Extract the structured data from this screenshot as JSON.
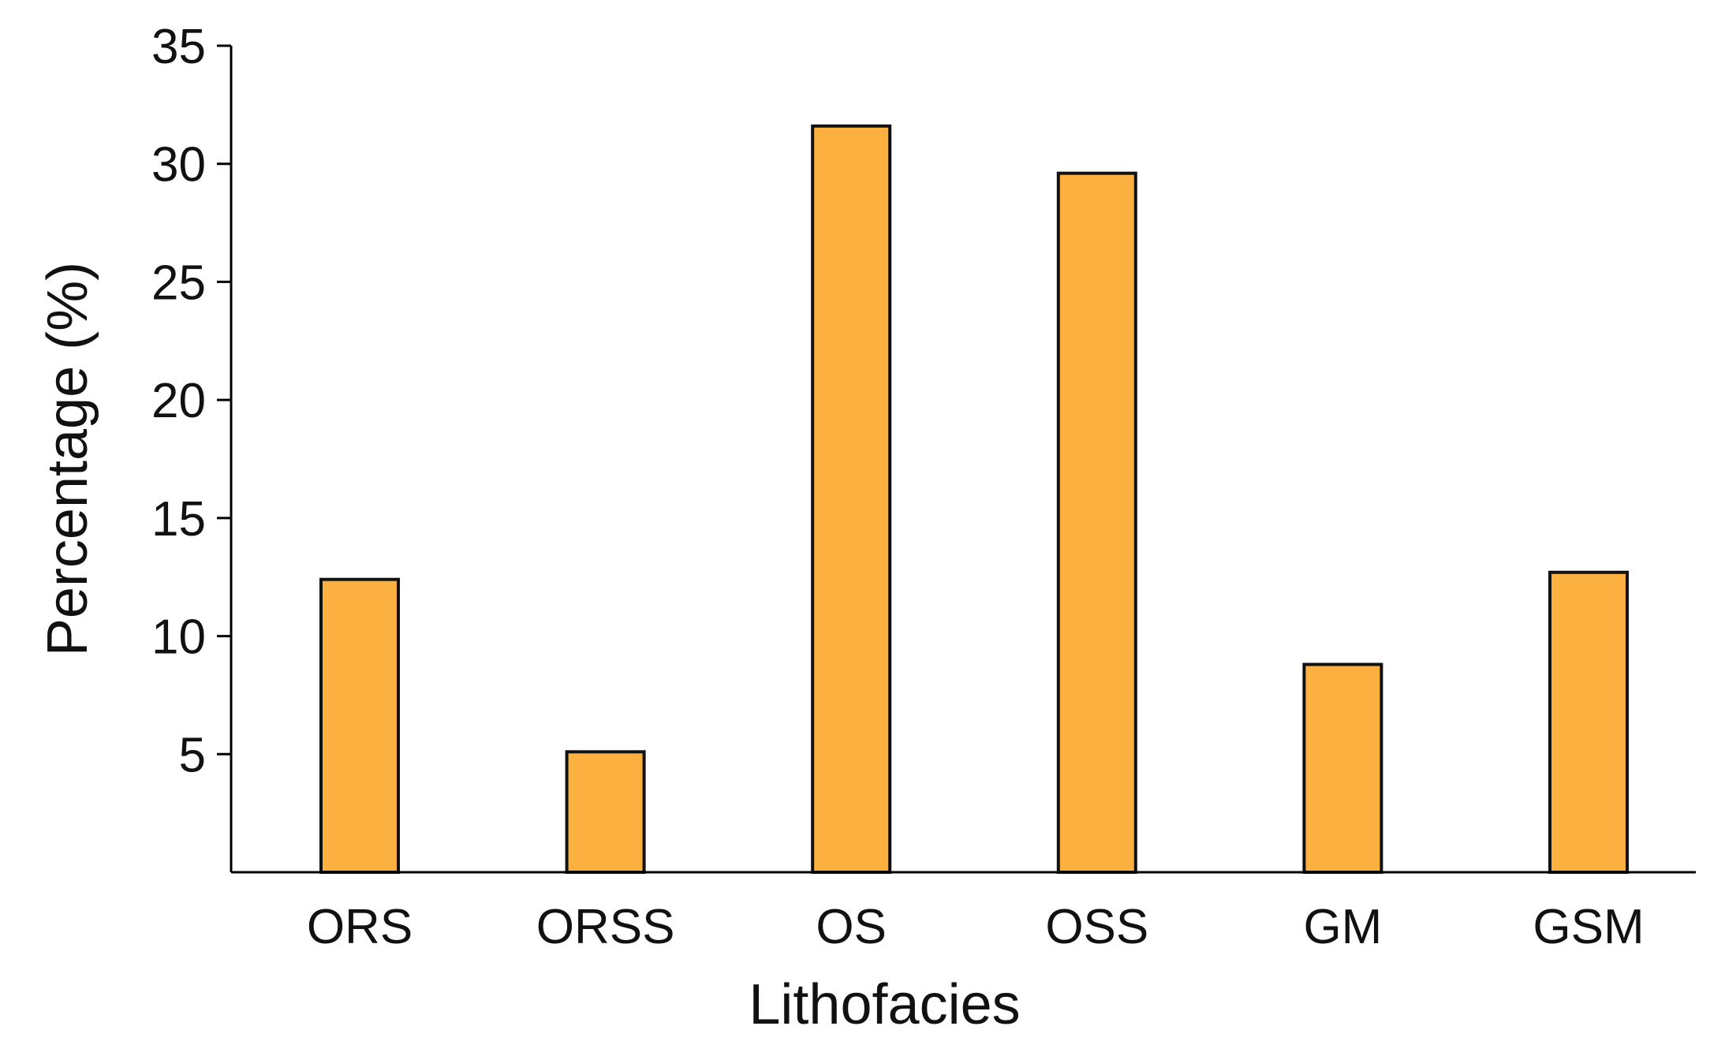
{
  "chart_data": {
    "type": "bar",
    "categories": [
      "ORS",
      "ORSS",
      "OS",
      "OSS",
      "GM",
      "GSM"
    ],
    "values": [
      12.4,
      5.1,
      31.6,
      29.6,
      8.8,
      12.7
    ],
    "xlabel": "Lithofacies",
    "ylabel": "Percentage (%)",
    "ylim": [
      0,
      35
    ],
    "yticks": [
      5,
      10,
      15,
      20,
      25,
      30,
      35
    ],
    "ytick_labels": [
      "5",
      "10",
      "15",
      "20",
      "25",
      "30",
      "35"
    ],
    "grid": false,
    "legend": "none"
  },
  "colors": {
    "bar_fill": "#FBB040",
    "bar_stroke": "#111111",
    "axis": "#000000"
  }
}
